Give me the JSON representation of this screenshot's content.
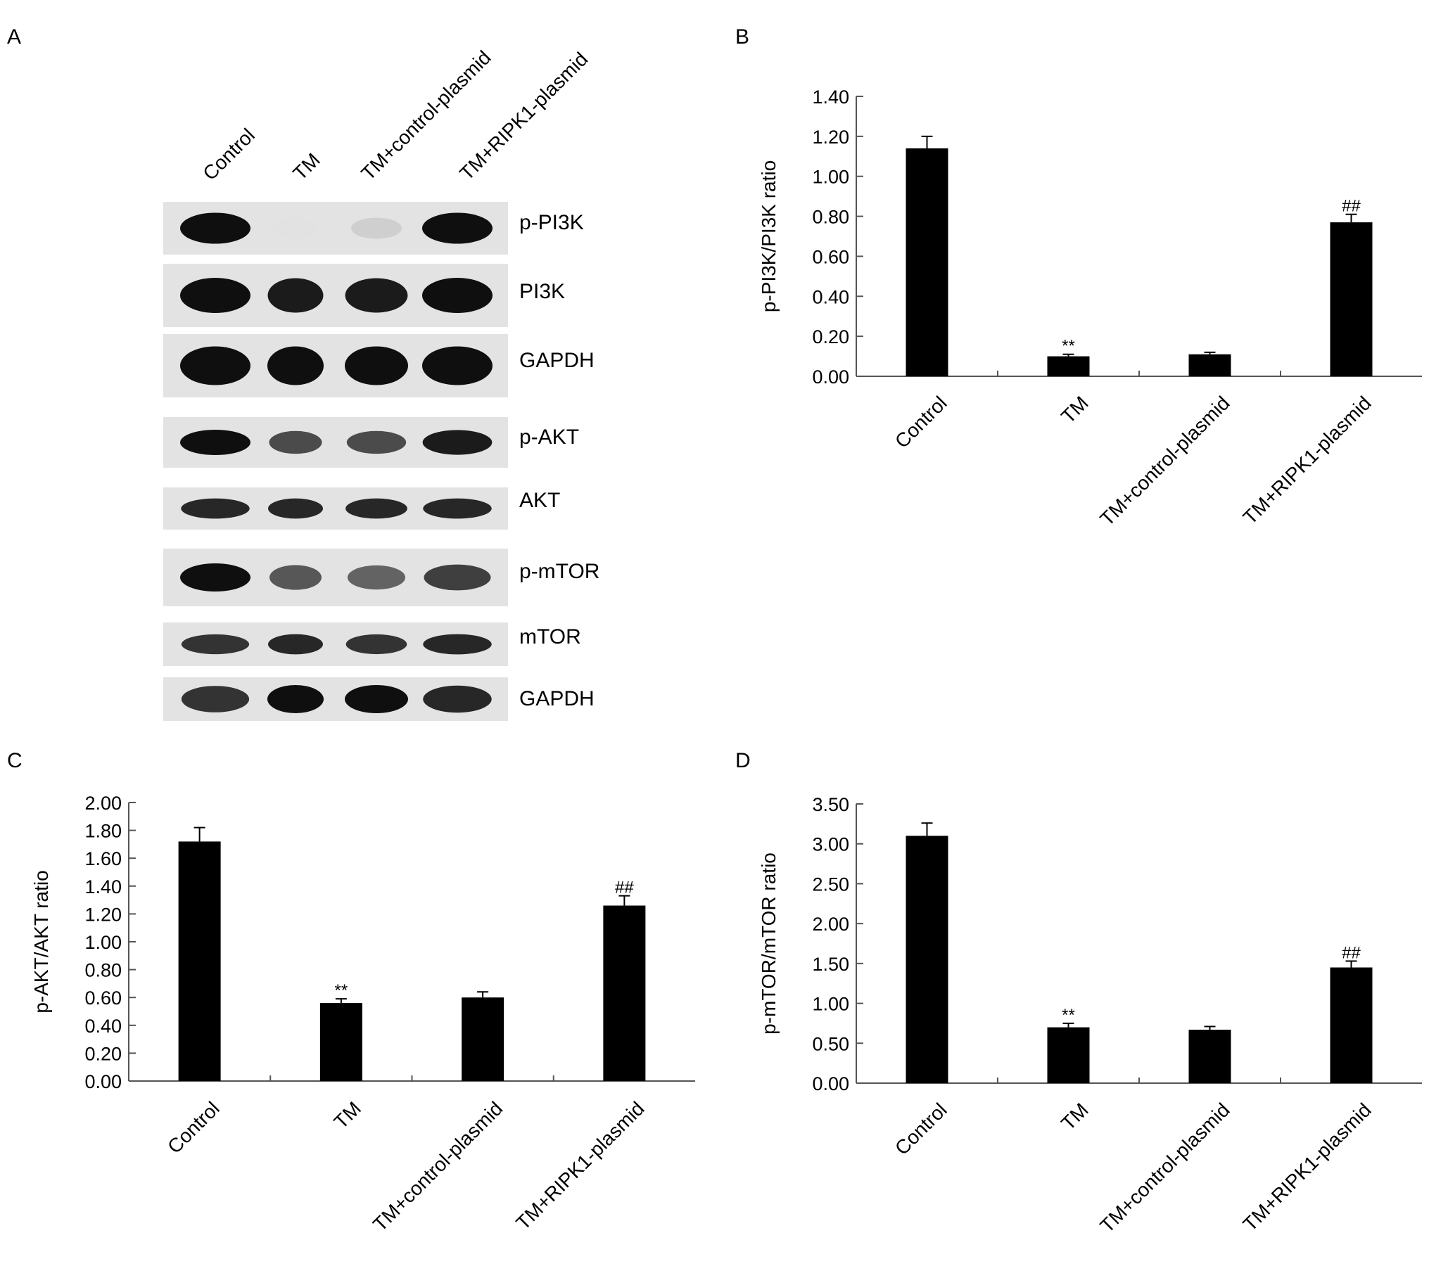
{
  "panels": {
    "a": "A",
    "b": "B",
    "c": "C",
    "d": "D"
  },
  "blot": {
    "lanes": [
      "Control",
      "TM",
      "TM+control-plasmid",
      "TM+RIPK1-plasmid"
    ],
    "bands": [
      {
        "label": "p-PI3K",
        "intensity": [
          1.0,
          0.12,
          0.2,
          1.0
        ]
      },
      {
        "label": "PI3K",
        "intensity": [
          1.0,
          0.95,
          0.95,
          1.0
        ]
      },
      {
        "label": "GAPDH",
        "intensity": [
          1.0,
          1.0,
          1.0,
          1.0
        ]
      },
      {
        "label": "p-AKT",
        "intensity": [
          1.0,
          0.75,
          0.75,
          0.95
        ]
      },
      {
        "label": "AKT",
        "intensity": [
          0.9,
          0.9,
          0.9,
          0.9
        ]
      },
      {
        "label": "p-mTOR",
        "intensity": [
          1.0,
          0.7,
          0.65,
          0.8
        ]
      },
      {
        "label": "mTOR",
        "intensity": [
          0.85,
          0.9,
          0.85,
          0.9
        ]
      },
      {
        "label": "GAPDH",
        "intensity": [
          0.85,
          1.0,
          1.0,
          0.9
        ]
      }
    ]
  },
  "chart_data": [
    {
      "panel": "B",
      "type": "bar",
      "categories": [
        "Control",
        "TM",
        "TM+control-plasmid",
        "TM+RIPK1-plasmid"
      ],
      "values": [
        1.14,
        0.1,
        0.11,
        0.77
      ],
      "errors": [
        0.06,
        0.01,
        0.01,
        0.04
      ],
      "annotations": [
        "",
        "**",
        "",
        "##"
      ],
      "ylabel": "p-PI3K/PI3K ratio",
      "ylim": [
        0,
        1.4
      ],
      "yticks": [
        "0.00",
        "0.20",
        "0.40",
        "0.60",
        "0.80",
        "1.00",
        "1.20",
        "1.40"
      ]
    },
    {
      "panel": "C",
      "type": "bar",
      "categories": [
        "Control",
        "TM",
        "TM+control-plasmid",
        "TM+RIPK1-plasmid"
      ],
      "values": [
        1.72,
        0.56,
        0.6,
        1.26
      ],
      "errors": [
        0.1,
        0.03,
        0.04,
        0.07
      ],
      "annotations": [
        "",
        "**",
        "",
        "##"
      ],
      "ylabel": "p-AKT/AKT ratio",
      "ylim": [
        0,
        2.0
      ],
      "yticks": [
        "0.00",
        "0.20",
        "0.40",
        "0.60",
        "0.80",
        "1.00",
        "1.20",
        "1.40",
        "1.60",
        "1.80",
        "2.00"
      ]
    },
    {
      "panel": "D",
      "type": "bar",
      "categories": [
        "Control",
        "TM",
        "TM+control-plasmid",
        "TM+RIPK1-plasmid"
      ],
      "values": [
        3.1,
        0.7,
        0.67,
        1.45
      ],
      "errors": [
        0.16,
        0.05,
        0.04,
        0.08
      ],
      "annotations": [
        "",
        "**",
        "",
        "##"
      ],
      "ylabel": "p-mTOR/mTOR ratio",
      "ylim": [
        0,
        3.5
      ],
      "yticks": [
        "0.00",
        "0.50",
        "1.00",
        "1.50",
        "2.00",
        "2.50",
        "3.00",
        "3.50"
      ]
    }
  ]
}
